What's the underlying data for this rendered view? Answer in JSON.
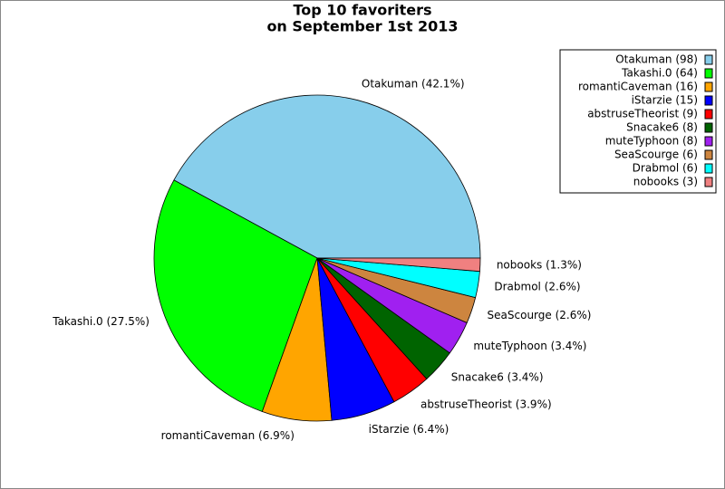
{
  "chart_data": {
    "type": "pie",
    "title": [
      "Top 10 favoriters",
      "on September 1st 2013"
    ],
    "values": [
      42.1,
      27.5,
      6.9,
      6.4,
      3.9,
      3.4,
      3.4,
      2.6,
      2.6,
      1.3
    ],
    "value_labels": [
      "Otakuman (42.1%)",
      "Takashi.0 (27.5%)",
      "romantiCaveman (6.9%)",
      "iStarzie (6.4%)",
      "abstruseTheorist (3.9%)",
      "Snacake6 (3.4%)",
      "muteTyphoon (3.4%)",
      "SeaScourge (2.6%)",
      "Drabmol (2.6%)",
      "nobooks (1.3%)"
    ],
    "legend": [
      "Otakuman (98)",
      "Takashi.0 (64)",
      "romantiCaveman (16)",
      "iStarzie (15)",
      "abstruseTheorist (9)",
      "Snacake6 (8)",
      "muteTyphoon (8)",
      "SeaScourge (6)",
      "Drabmol (6)",
      "nobooks (3)"
    ],
    "colors": [
      "#87ceeb",
      "#00ff00",
      "#ffa500",
      "#0000ff",
      "#ff0000",
      "#006400",
      "#a020f0",
      "#cd853f",
      "#00ffff",
      "#f08080"
    ],
    "legend_position": "upper right"
  }
}
